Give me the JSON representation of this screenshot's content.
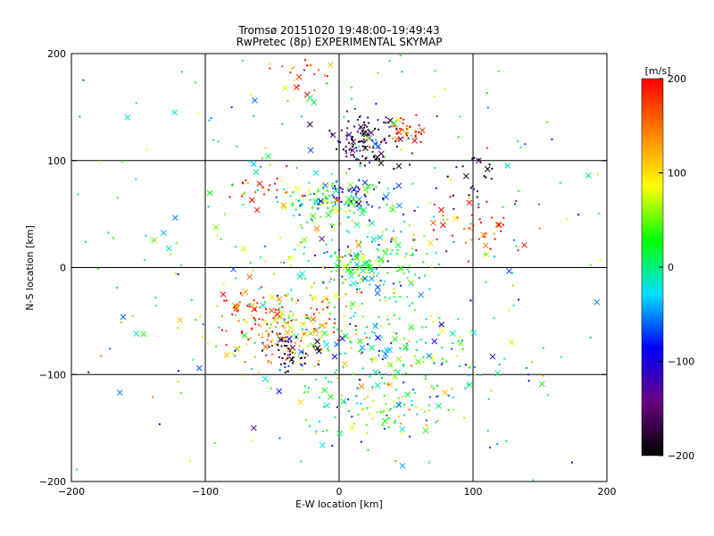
{
  "chart_data": {
    "type": "scatter",
    "title": "Tromsø 20151020 19:48:00–19:49:43",
    "subtitle": "RwPretec (8p) EXPERIMENTAL SKYMAP",
    "xlabel": "E-W location [km]",
    "ylabel": "N-S location [km]",
    "xlim": [
      -200,
      200
    ],
    "ylim": [
      -200,
      200
    ],
    "xticks": [
      -200,
      -100,
      0,
      100,
      200
    ],
    "yticks": [
      -200,
      -100,
      0,
      100,
      200
    ],
    "xtick_labels": [
      "−200",
      "−100",
      "0",
      "100",
      "200"
    ],
    "ytick_labels": [
      "−200",
      "−100",
      "0",
      "100",
      "200"
    ],
    "grid": true,
    "colorbar": {
      "label": "[m/s]",
      "min": -200,
      "max": 200,
      "ticks": [
        200,
        100,
        0,
        -100,
        -200
      ],
      "tick_labels": [
        "200",
        "100",
        "0",
        "−100",
        "−200"
      ],
      "colormap_stops": [
        "#000000",
        "#6a0080",
        "#0000ff",
        "#00e0ff",
        "#00ff00",
        "#ffff00",
        "#ff8000",
        "#ff0000"
      ]
    },
    "marker_types": [
      "dot",
      "x"
    ],
    "clusters": [
      {
        "x": 20,
        "y": 120,
        "spread": [
          12,
          12
        ],
        "velocity": -180,
        "count": 120
      },
      {
        "x": 50,
        "y": 125,
        "spread": [
          8,
          8
        ],
        "velocity": 200,
        "count": 45
      },
      {
        "x": -30,
        "y": 180,
        "spread": [
          12,
          10
        ],
        "velocity": 150,
        "count": 25
      },
      {
        "x": -5,
        "y": 60,
        "spread": [
          20,
          12
        ],
        "velocity": 20,
        "count": 140
      },
      {
        "x": 10,
        "y": 70,
        "spread": [
          12,
          6
        ],
        "velocity": -100,
        "count": 40
      },
      {
        "x": 100,
        "y": 40,
        "spread": [
          18,
          12
        ],
        "velocity": 200,
        "count": 45
      },
      {
        "x": 20,
        "y": 0,
        "spread": [
          25,
          15
        ],
        "velocity": 20,
        "count": 170
      },
      {
        "x": -40,
        "y": -60,
        "spread": [
          22,
          18
        ],
        "velocity": 130,
        "count": 160
      },
      {
        "x": -35,
        "y": -80,
        "spread": [
          10,
          8
        ],
        "velocity": -200,
        "count": 45
      },
      {
        "x": 30,
        "y": -80,
        "spread": [
          40,
          25
        ],
        "velocity": 0,
        "count": 180
      },
      {
        "x": -70,
        "y": -40,
        "spread": [
          12,
          12
        ],
        "velocity": 200,
        "count": 40
      },
      {
        "x": 40,
        "y": -130,
        "spread": [
          30,
          15
        ],
        "velocity": 20,
        "count": 80
      },
      {
        "x": -60,
        "y": 75,
        "spread": [
          15,
          8
        ],
        "velocity": 200,
        "count": 25
      },
      {
        "x": 100,
        "y": 85,
        "spread": [
          8,
          10
        ],
        "velocity": -200,
        "count": 20
      },
      {
        "x": 0,
        "y": 0,
        "spread": [
          110,
          110
        ],
        "velocity": 0,
        "count": 400
      }
    ]
  }
}
